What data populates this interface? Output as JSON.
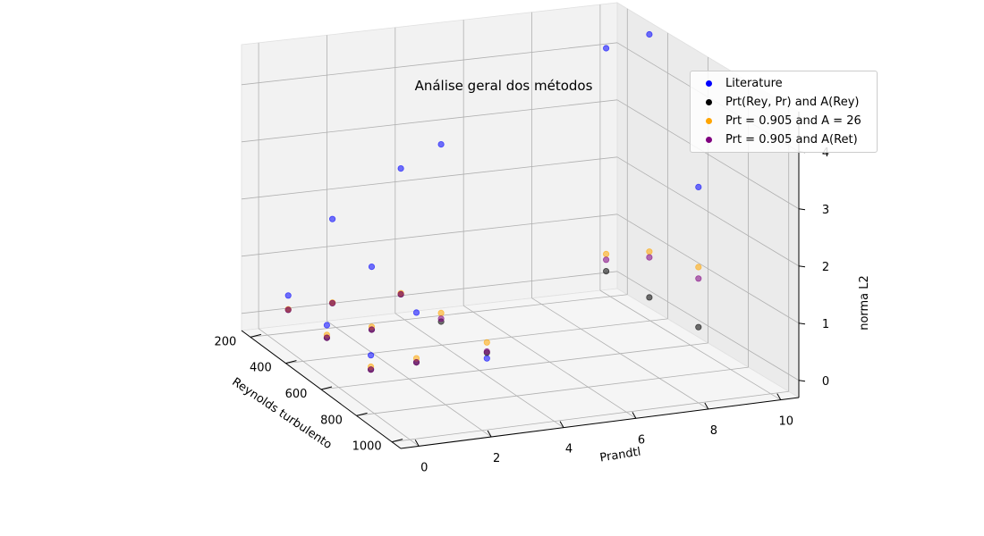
{
  "chart_data": {
    "type": "scatter3d",
    "title": "Análise geral dos métodos",
    "xlabel": "Reynolds turbulento",
    "ylabel": "Prandtl",
    "zlabel": "norma L2",
    "x_ticks": [
      200,
      400,
      600,
      800,
      1000
    ],
    "y_ticks": [
      0,
      2,
      4,
      6,
      8,
      10
    ],
    "z_ticks": [
      0,
      1,
      2,
      3,
      4
    ],
    "xlim": [
      150,
      1050
    ],
    "ylim": [
      -0.5,
      10.5
    ],
    "zlim": [
      -0.3,
      4.7
    ],
    "grid": true,
    "legend_position": "top-right",
    "series": [
      {
        "name": "Literature",
        "color": "#0000ff",
        "points": [
          {
            "x": 180,
            "y": 0.71,
            "z": 0.3
          },
          {
            "x": 180,
            "y": 2.0,
            "z": 1.55
          },
          {
            "x": 180,
            "y": 4.0,
            "z": 2.3
          },
          {
            "x": 180,
            "y": 10.0,
            "z": 4.0
          },
          {
            "x": 395,
            "y": 0.71,
            "z": 0.27
          },
          {
            "x": 395,
            "y": 2.0,
            "z": 1.2
          },
          {
            "x": 395,
            "y": 4.0,
            "z": 3.2
          },
          {
            "x": 395,
            "y": 10.0,
            "z": 4.7
          },
          {
            "x": 640,
            "y": 0.71,
            "z": 0.3
          },
          {
            "x": 640,
            "y": 2.0,
            "z": 0.95
          },
          {
            "x": 640,
            "y": 4.0,
            "z": 0.0
          },
          {
            "x": 640,
            "y": 10.0,
            "z": 2.55
          }
        ]
      },
      {
        "name": "Prt(Rey, Pr) and A(Rey)",
        "color": "#000000",
        "points": [
          {
            "x": 180,
            "y": 0.71,
            "z": 0.05
          },
          {
            "x": 180,
            "y": 2.0,
            "z": 0.08
          },
          {
            "x": 180,
            "y": 4.0,
            "z": 0.1
          },
          {
            "x": 180,
            "y": 10.0,
            "z": 0.1
          },
          {
            "x": 395,
            "y": 0.71,
            "z": 0.05
          },
          {
            "x": 395,
            "y": 2.0,
            "z": 0.1
          },
          {
            "x": 395,
            "y": 4.0,
            "z": 0.1
          },
          {
            "x": 395,
            "y": 10.0,
            "z": 0.1
          },
          {
            "x": 640,
            "y": 0.71,
            "z": 0.05
          },
          {
            "x": 640,
            "y": 2.0,
            "z": 0.08
          },
          {
            "x": 640,
            "y": 4.0,
            "z": 0.1
          },
          {
            "x": 640,
            "y": 10.0,
            "z": 0.1
          }
        ]
      },
      {
        "name": "Prt = 0.905 and A = 26",
        "color": "#ffa500",
        "points": [
          {
            "x": 180,
            "y": 0.71,
            "z": 0.06
          },
          {
            "x": 180,
            "y": 2.0,
            "z": 0.09
          },
          {
            "x": 180,
            "y": 4.0,
            "z": 0.12
          },
          {
            "x": 180,
            "y": 10.0,
            "z": 0.4
          },
          {
            "x": 395,
            "y": 0.71,
            "z": 0.1
          },
          {
            "x": 395,
            "y": 2.0,
            "z": 0.15
          },
          {
            "x": 395,
            "y": 4.0,
            "z": 0.25
          },
          {
            "x": 395,
            "y": 10.0,
            "z": 0.9
          },
          {
            "x": 640,
            "y": 0.71,
            "z": 0.1
          },
          {
            "x": 640,
            "y": 2.0,
            "z": 0.15
          },
          {
            "x": 640,
            "y": 4.0,
            "z": 0.28
          },
          {
            "x": 640,
            "y": 10.0,
            "z": 1.15
          }
        ]
      },
      {
        "name": "Prt = 0.905 and A(Ret)",
        "color": "#800080",
        "points": [
          {
            "x": 180,
            "y": 0.71,
            "z": 0.05
          },
          {
            "x": 180,
            "y": 2.0,
            "z": 0.08
          },
          {
            "x": 180,
            "y": 4.0,
            "z": 0.1
          },
          {
            "x": 180,
            "y": 10.0,
            "z": 0.3
          },
          {
            "x": 395,
            "y": 0.71,
            "z": 0.05
          },
          {
            "x": 395,
            "y": 2.0,
            "z": 0.1
          },
          {
            "x": 395,
            "y": 4.0,
            "z": 0.15
          },
          {
            "x": 395,
            "y": 10.0,
            "z": 0.8
          },
          {
            "x": 640,
            "y": 0.71,
            "z": 0.05
          },
          {
            "x": 640,
            "y": 2.0,
            "z": 0.08
          },
          {
            "x": 640,
            "y": 4.0,
            "z": 0.12
          },
          {
            "x": 640,
            "y": 10.0,
            "z": 0.95
          }
        ]
      }
    ]
  }
}
